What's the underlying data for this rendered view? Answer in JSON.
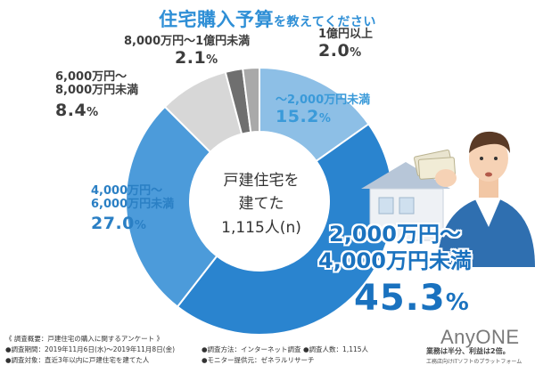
{
  "title": {
    "main": "住宅購入予算",
    "suffix": "を教えてください"
  },
  "center": {
    "line1": "戸建住宅を",
    "line2": "建てた",
    "line3": "1,115人(n)"
  },
  "colors": {
    "title": "#2f8fd6",
    "seg_main": "#2a84cf",
    "seg_blue": "#4c9bda",
    "seg_light": "#8dbfe6",
    "seg_gray1": "#d7d7d7",
    "seg_gray2": "#6f6f6f",
    "seg_gray3": "#a9a9a9"
  },
  "chart_data": {
    "type": "pie",
    "donut": true,
    "slices": [
      {
        "name": "～2,000万円未満",
        "value": 15.2,
        "label": "15.2%",
        "color": "#8dbfe6"
      },
      {
        "name": "2,000万円～4,000万円未満",
        "value": 45.3,
        "label": "45.3%",
        "color": "#2a84cf"
      },
      {
        "name": "4,000万円～6,000万円未満",
        "value": 27.0,
        "label": "27.0%",
        "color": "#4c9bda"
      },
      {
        "name": "6,000万円～8,000万円未満",
        "value": 8.4,
        "label": "8.4%",
        "color": "#d7d7d7"
      },
      {
        "name": "8,000万円～1億円未満",
        "value": 2.1,
        "label": "2.1%",
        "color": "#6f6f6f"
      },
      {
        "name": "1億円以上",
        "value": 2.0,
        "label": "2.0%",
        "color": "#a9a9a9"
      }
    ]
  },
  "labels": {
    "s0_name": "～2,000万円未満",
    "s0_num": "15.2",
    "s0_unit": "%",
    "s1_name1": "2,000万円～",
    "s1_name2": "4,000万円未満",
    "s1_num": "45.3",
    "s1_unit": "%",
    "s2_name1": "4,000万円～",
    "s2_name2": "6,000万円未満",
    "s2_num": "27.0",
    "s2_unit": "%",
    "s3_name1": "6,000万円～",
    "s3_name2": "8,000万円未満",
    "s3_num": "8.4",
    "s3_unit": "%",
    "s4_name": "8,000万円～1億円未満",
    "s4_num": "2.1",
    "s4_unit": "%",
    "s5_name": "1億円以上",
    "s5_num": "2.0",
    "s5_unit": "%"
  },
  "footer": {
    "summary": "《 調査概要：戸建住宅の購入に関するアンケート 》",
    "period": "●調査期間：2019年11月6日(水)～2019年11月8日(金)",
    "target": "●調査対象：直近3年以内に戸建住宅を建てた人",
    "method": "●調査方法：インターネット調査",
    "count": "●調査人数：1,115人",
    "provider": "●モニター提供元：ゼネラルリサーチ"
  },
  "brand": {
    "logo": "AnyONE",
    "tagline": "業務は半分、利益は2倍。",
    "subtagline": "工務店向けITソフトのプラットフォーム"
  }
}
